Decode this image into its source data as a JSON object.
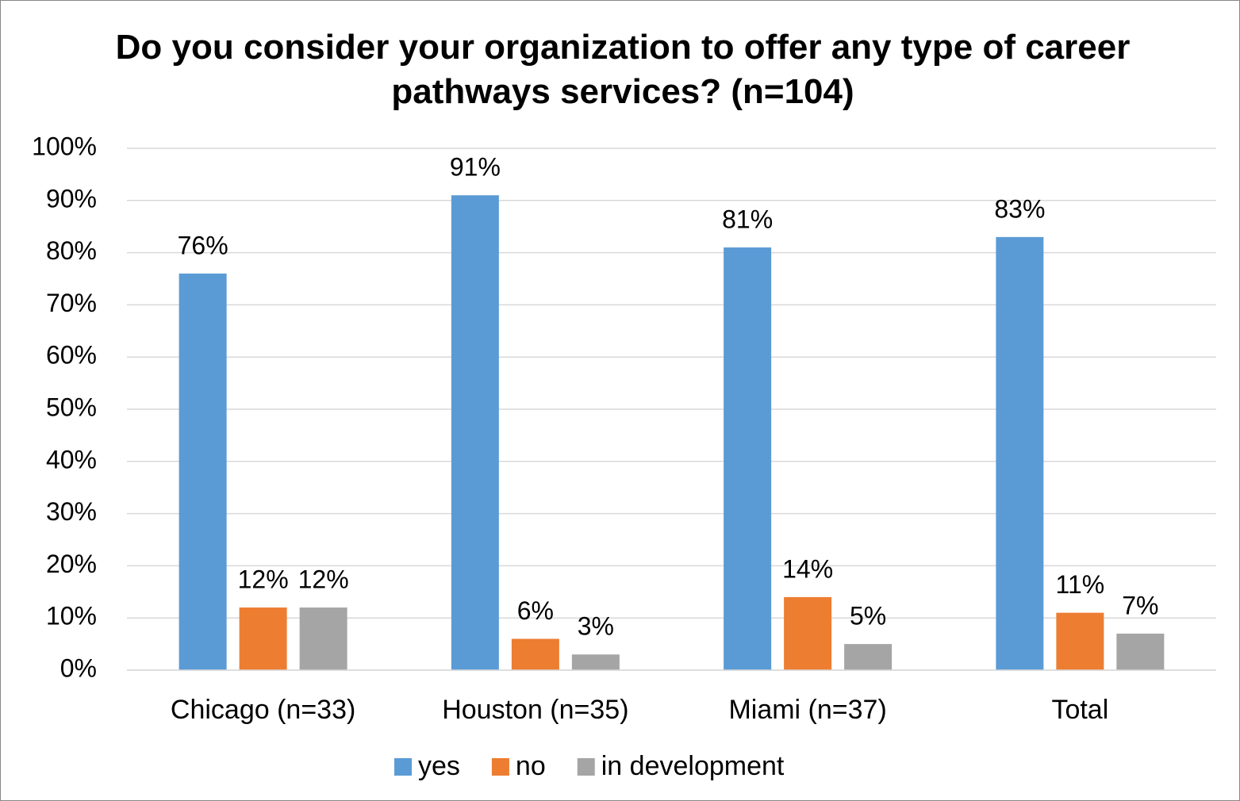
{
  "chart_data": {
    "type": "bar",
    "title": "Do you consider your organization to offer any type of career pathways services? (n=104)",
    "categories": [
      "Chicago (n=33)",
      "Houston (n=35)",
      "Miami (n=37)",
      "Total"
    ],
    "series": [
      {
        "name": "yes",
        "color": "#5b9bd5",
        "values": [
          76,
          91,
          81,
          83
        ],
        "value_labels": [
          "76%",
          "91%",
          "81%",
          "83%"
        ]
      },
      {
        "name": "no",
        "color": "#ed7d31",
        "values": [
          12,
          6,
          14,
          11
        ],
        "value_labels": [
          "12%",
          "6%",
          "14%",
          "11%"
        ]
      },
      {
        "name": "in development",
        "color": "#a5a5a5",
        "values": [
          12,
          3,
          5,
          7
        ],
        "value_labels": [
          "12%",
          "3%",
          "5%",
          "7%"
        ]
      }
    ],
    "ylim": [
      0,
      100
    ],
    "yticks": [
      {
        "value": 0,
        "label": "0%"
      },
      {
        "value": 10,
        "label": "10%"
      },
      {
        "value": 20,
        "label": "20%"
      },
      {
        "value": 30,
        "label": "30%"
      },
      {
        "value": 40,
        "label": "40%"
      },
      {
        "value": 50,
        "label": "50%"
      },
      {
        "value": 60,
        "label": "60%"
      },
      {
        "value": 70,
        "label": "70%"
      },
      {
        "value": 80,
        "label": "80%"
      },
      {
        "value": 90,
        "label": "90%"
      },
      {
        "value": 100,
        "label": "100%"
      }
    ],
    "grid": true,
    "legend": "bottom"
  }
}
